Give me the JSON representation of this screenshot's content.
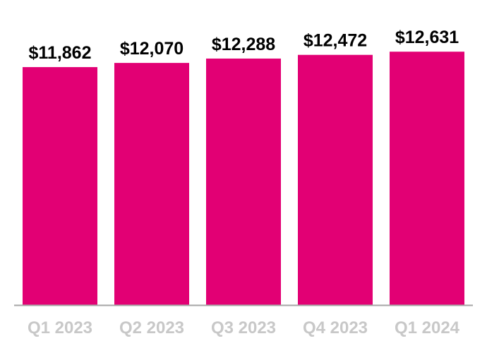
{
  "colors": {
    "bar": "#e20074",
    "data_label": "#000000",
    "tick_label": "#c8c8c8",
    "baseline": "#a6a6a6"
  },
  "chart_data": {
    "type": "bar",
    "categories": [
      "Q1 2023",
      "Q2 2023",
      "Q3 2023",
      "Q4 2023",
      "Q1 2024"
    ],
    "values": [
      11862,
      12070,
      12288,
      12472,
      12631
    ],
    "data_labels": [
      "$11,862",
      "$12,070",
      "$12,288",
      "$12,472",
      "$12,631"
    ],
    "title": "",
    "xlabel": "",
    "ylabel": "",
    "ylim": [
      0,
      13800
    ],
    "grid": false,
    "legend": "none"
  }
}
